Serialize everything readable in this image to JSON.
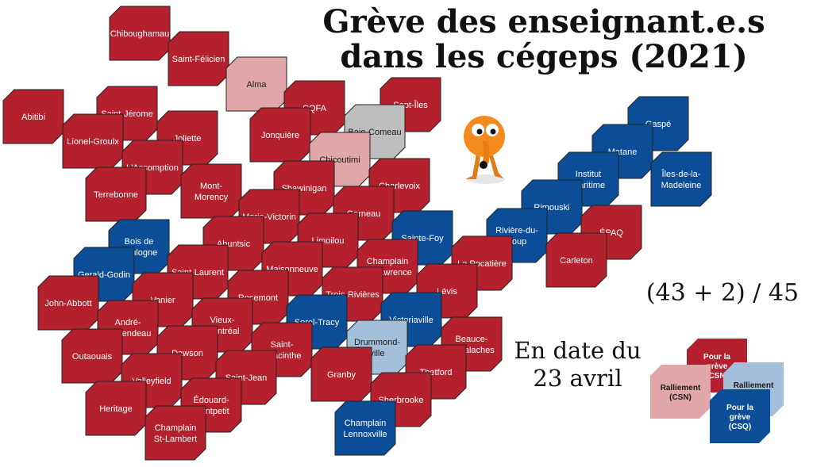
{
  "title": {
    "line1": "Grève des enseignant.e.s",
    "line2": "dans les cégeps (2021)"
  },
  "count_text": "(43 + 2) / 45",
  "date": {
    "line1": "En date du",
    "line2": "23 avril"
  },
  "colors": {
    "strike_csn": "#b5202e",
    "rally_csn": "#e0a6a8",
    "strike_csq": "#0b4d96",
    "rally_csq": "#a3bfd9",
    "none": "#bebebe"
  },
  "cegeps": [
    {
      "name": "Chiboughamau",
      "status": "strike_csn"
    },
    {
      "name": "Saint-Félicien",
      "status": "strike_csn"
    },
    {
      "name": "Alma",
      "status": "rally_csn"
    },
    {
      "name": "Abitibi",
      "status": "strike_csn"
    },
    {
      "name": "Saint-Jérome",
      "status": "strike_csn"
    },
    {
      "name": "CQFA",
      "status": "strike_csn"
    },
    {
      "name": "Sept-Îles",
      "status": "strike_csn"
    },
    {
      "name": "Lionel-Groulx",
      "status": "strike_csn"
    },
    {
      "name": "Joliette",
      "status": "strike_csn"
    },
    {
      "name": "Jonquière",
      "status": "strike_csn"
    },
    {
      "name": "Baie-Comeau",
      "status": "none"
    },
    {
      "name": "Gaspé",
      "status": "strike_csq"
    },
    {
      "name": "L'Assomption",
      "status": "strike_csn"
    },
    {
      "name": "Chicoutimi",
      "status": "rally_csn"
    },
    {
      "name": "Matane",
      "status": "strike_csq"
    },
    {
      "name": "Terrebonne",
      "status": "strike_csn"
    },
    {
      "name": "Mont-Morency",
      "status": "strike_csn"
    },
    {
      "name": "Shawinigan",
      "status": "strike_csn"
    },
    {
      "name": "Charlevoix",
      "status": "strike_csn"
    },
    {
      "name": "Institut maritime",
      "status": "strike_csq"
    },
    {
      "name": "Îles-de-la-Madeleine",
      "status": "strike_csq"
    },
    {
      "name": "Marie-Victorin",
      "status": "strike_csn"
    },
    {
      "name": "Garneau",
      "status": "strike_csn"
    },
    {
      "name": "Rimouski",
      "status": "strike_csq"
    },
    {
      "name": "Bois de Boulogne",
      "status": "strike_csq"
    },
    {
      "name": "Ahuntsic",
      "status": "strike_csn"
    },
    {
      "name": "Limoilou",
      "status": "strike_csn"
    },
    {
      "name": "Sainte-Foy",
      "status": "strike_csq"
    },
    {
      "name": "Rivière-du-Loup",
      "status": "strike_csq"
    },
    {
      "name": "ÉPAQ",
      "status": "strike_csn"
    },
    {
      "name": "Gerald-Godin",
      "status": "strike_csq"
    },
    {
      "name": "Saint-Laurent",
      "status": "strike_csn"
    },
    {
      "name": "Maisonneuve",
      "status": "strike_csn"
    },
    {
      "name": "Champlain St-Lawrence",
      "status": "strike_csn"
    },
    {
      "name": "La Pocatière",
      "status": "strike_csn"
    },
    {
      "name": "Carleton",
      "status": "strike_csn"
    },
    {
      "name": "John-Abbott",
      "status": "strike_csn"
    },
    {
      "name": "Vanier",
      "status": "strike_csn"
    },
    {
      "name": "Rosemont",
      "status": "strike_csn"
    },
    {
      "name": "Trois-Rivières",
      "status": "strike_csn"
    },
    {
      "name": "Lévis",
      "status": "strike_csn"
    },
    {
      "name": "André-Laurendeau",
      "status": "strike_csn"
    },
    {
      "name": "Vieux-Montréal",
      "status": "strike_csn"
    },
    {
      "name": "Sorel-Tracy",
      "status": "strike_csq"
    },
    {
      "name": "Victoriaville",
      "status": "strike_csq"
    },
    {
      "name": "Outaouais",
      "status": "strike_csn"
    },
    {
      "name": "Dawson",
      "status": "strike_csn"
    },
    {
      "name": "Saint-Hyacinthe",
      "status": "strike_csn"
    },
    {
      "name": "Drummond-ville",
      "status": "rally_csq"
    },
    {
      "name": "Beauce-Appalaches",
      "status": "strike_csn"
    },
    {
      "name": "Valleyfield",
      "status": "strike_csn"
    },
    {
      "name": "Saint-Jean",
      "status": "strike_csn"
    },
    {
      "name": "Granby",
      "status": "strike_csn"
    },
    {
      "name": "Thetford",
      "status": "strike_csn"
    },
    {
      "name": "Heritage",
      "status": "strike_csn"
    },
    {
      "name": "Édouard-Montpetit",
      "status": "strike_csn"
    },
    {
      "name": "Sherbrooke",
      "status": "strike_csn"
    },
    {
      "name": "Champlain St-Lambert",
      "status": "strike_csn"
    },
    {
      "name": "Champlain Lennoxville",
      "status": "strike_csq"
    }
  ],
  "legend": [
    {
      "label": "Pour la grève (CSN)",
      "status": "strike_csn"
    },
    {
      "label": "Ralliement (CSN)",
      "status": "rally_csn"
    },
    {
      "label": "Ralliement (CSQ)",
      "status": "rally_csq"
    },
    {
      "label": "Pour la grève (CSQ)",
      "status": "strike_csq"
    }
  ]
}
